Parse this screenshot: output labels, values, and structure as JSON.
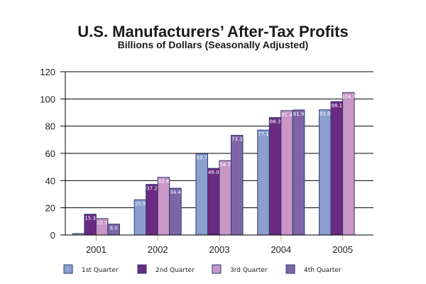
{
  "chart_data": {
    "type": "bar",
    "title": "U.S. Manufacturers’ After-Tax Profits",
    "subtitle": "Billions of Dollars (Seasonally Adjusted)",
    "xlabel": "",
    "ylabel": "",
    "ylim": [
      0,
      120
    ],
    "yticks": [
      0,
      20,
      40,
      60,
      80,
      100,
      120
    ],
    "grid": true,
    "legend_position": "bottom",
    "categories": [
      "2001",
      "2002",
      "2003",
      "2004",
      "2005"
    ],
    "series": [
      {
        "name": "1st Quarter",
        "color": "#8a9fcf",
        "values": [
          1.1,
          25.9,
          59.7,
          77.1,
          92.0
        ],
        "labels": [
          "1.1",
          "25.9",
          "59.7",
          "77.1",
          "92.0"
        ]
      },
      {
        "name": "2nd Quarter",
        "color": "#6a2a82",
        "values": [
          15.3,
          37.2,
          49.0,
          86.3,
          98.1
        ],
        "labels": [
          "15.3",
          "37.2",
          "49.0",
          "86.3",
          "98.1"
        ]
      },
      {
        "name": "3rd Quarter",
        "color": "#c996c6",
        "values": [
          12.1,
          42.4,
          54.7,
          91.4,
          104.7
        ],
        "labels": [
          "12.1",
          "42.4",
          "54.7",
          "91.4",
          "104.7"
        ]
      },
      {
        "name": "4th Quarter",
        "color": "#7d65a8",
        "values": [
          8.0,
          34.4,
          73.3,
          91.9,
          null
        ],
        "labels": [
          "8.0",
          "34.4",
          "73.3",
          "91.9",
          null
        ]
      }
    ]
  }
}
